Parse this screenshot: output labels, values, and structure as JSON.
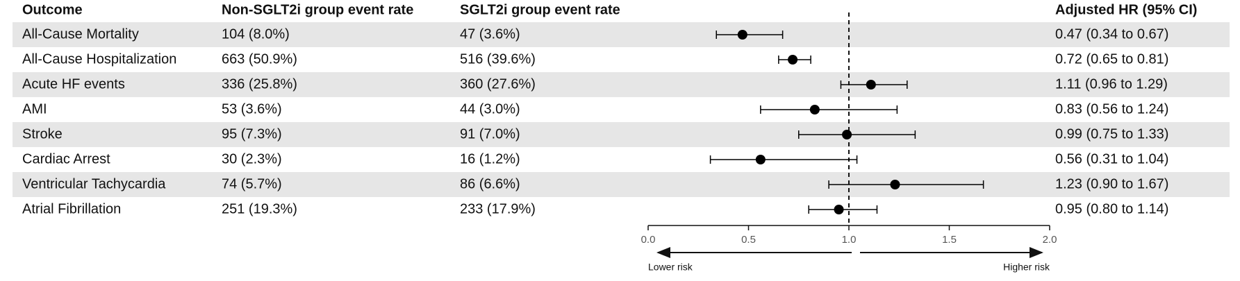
{
  "chart_data": {
    "type": "forest",
    "columns": [
      "Outcome",
      "Non-SGLT2i group event rate",
      "SGLT2i group event rate",
      "Adjusted HR (95% CI)"
    ],
    "categories": [
      "All-Cause Mortality",
      "All-Cause Hospitalization",
      "Acute HF events",
      "AMI",
      "Stroke",
      "Cardiac Arrest",
      "Ventricular Tachycardia",
      "Atrial Fibrillation"
    ],
    "non_sglt2i": [
      "104 (8.0%)",
      "663 (50.9%)",
      "336 (25.8%)",
      "53 (3.6%)",
      "95 (7.3%)",
      "30 (2.3%)",
      "74 (5.7%)",
      "251 (19.3%)"
    ],
    "sglt2i": [
      "47 (3.6%)",
      "516 (39.6%)",
      "360 (27.6%)",
      "44 (3.0%)",
      "91 (7.0%)",
      "16 (1.2%)",
      "86 (6.6%)",
      "233 (17.9%)"
    ],
    "values": [
      0.47,
      0.72,
      1.11,
      0.83,
      0.99,
      0.56,
      1.23,
      0.95
    ],
    "lower": [
      0.34,
      0.65,
      0.96,
      0.56,
      0.75,
      0.31,
      0.9,
      0.8
    ],
    "upper": [
      0.67,
      0.81,
      1.29,
      1.24,
      1.33,
      1.04,
      1.67,
      1.14
    ],
    "value_labels": [
      "0.47 (0.34 to 0.67)",
      "0.72 (0.65 to 0.81)",
      "1.11 (0.96 to 1.29)",
      "0.83 (0.56 to 1.24)",
      "0.99 (0.75 to 1.33)",
      "0.56 (0.31 to 1.04)",
      "1.23 (0.90 to 1.67)",
      "0.95 (0.80 to 1.14)"
    ],
    "reference": 1,
    "xlim": [
      0,
      2
    ],
    "xticks": [
      {
        "value": 0,
        "label": "0.0"
      },
      0.5,
      {
        "value": 1,
        "label": "1.0"
      },
      1.5,
      {
        "value": 2,
        "label": "2.0"
      }
    ],
    "annotations": [
      "Lower risk",
      "Higher risk"
    ],
    "color": "#000000"
  }
}
